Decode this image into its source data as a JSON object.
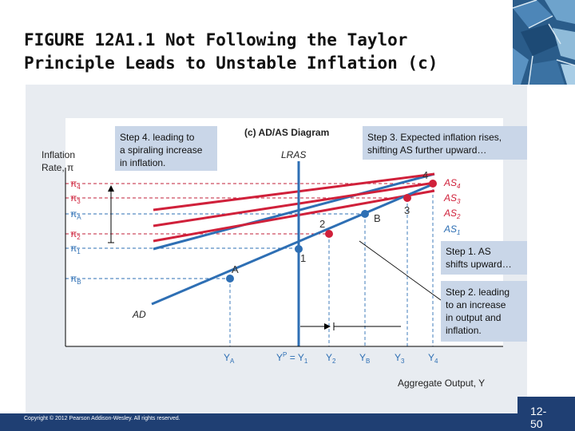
{
  "slide": {
    "title_line1": "FIGURE 12A1.1  Not Following the Taylor",
    "title_line2": "Principle Leads to Unstable Inflation (c)",
    "copyright": "Copyright © 2012 Pearson Addison-Wesley. All rights reserved.",
    "page_number_line1": "12-",
    "page_number_line2": "50"
  },
  "diagram": {
    "panel_title": "(c) AD/AS Diagram",
    "y_axis_label_line1": "Inflation",
    "y_axis_label_line2": "Rate, π",
    "x_axis_label": "Aggregate Output, Y",
    "lras_label": "LRAS",
    "ad_label": "AD",
    "pi_ticks": {
      "pi4": "π",
      "pi4_sub": "4",
      "pi3": "π",
      "pi3_sub": "3",
      "piA": "π",
      "piA_sub": "A",
      "pi2": "π",
      "pi2_sub": "2",
      "pi1": "π",
      "pi1_sub": "1",
      "piB": "π",
      "piB_sub": "B"
    },
    "y_ticks": {
      "yA": "Y",
      "yA_sub": "A",
      "yP": "Y",
      "yP_sup": "P",
      "yP_eq": " = Y",
      "yP_sub": "1",
      "y2": "Y",
      "y2_sub": "2",
      "yB": "Y",
      "yB_sub": "B",
      "y3": "Y",
      "y3_sub": "3",
      "y4": "Y",
      "y4_sub": "4"
    },
    "as_labels": {
      "as4": "AS",
      "as4_sub": "4",
      "as3": "AS",
      "as3_sub": "3",
      "as2": "AS",
      "as2_sub": "2",
      "as1": "AS",
      "as1_sub": "1"
    },
    "points": {
      "p1": "1",
      "p2": "2",
      "p3": "3",
      "p4": "4",
      "pA": "A",
      "pB": "B"
    },
    "callouts": {
      "step4_line1": "Step 4. leading to",
      "step4_line2": "a spiraling increase",
      "step4_line3": "in inflation.",
      "step3_line1": "Step 3. Expected inflation rises,",
      "step3_line2": "shifting AS further upward…",
      "step1_line1": "Step 1. AS",
      "step1_line2": "shifts upward…",
      "step2_line1": "Step 2. leading",
      "step2_line2": "to an increase",
      "step2_line3": "in output and",
      "step2_line4": "inflation."
    },
    "colors": {
      "blue": "#2e6fb4",
      "red": "#d0203a",
      "callout_bg": "#c9d6e8",
      "navy": "#1f3f73"
    }
  }
}
